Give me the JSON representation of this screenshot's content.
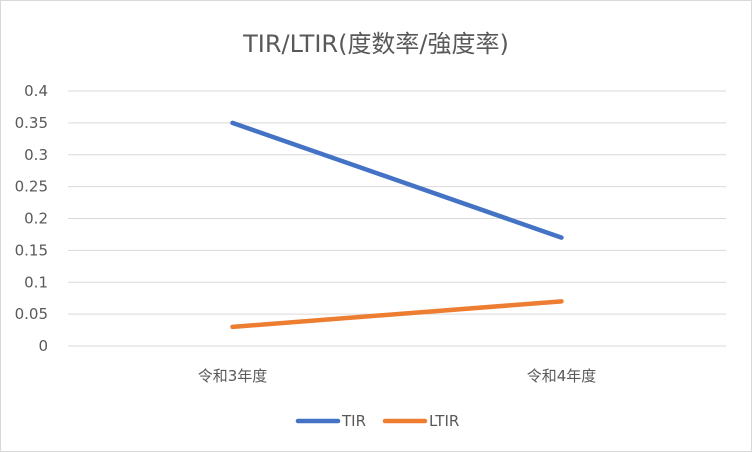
{
  "chart_data": {
    "type": "line",
    "title": "TIR/LTIR(度数率/強度率)",
    "categories": [
      "令和3年度",
      "令和4年度"
    ],
    "series": [
      {
        "name": "TIR",
        "values": [
          0.35,
          0.17
        ],
        "color": "#4472C4"
      },
      {
        "name": "LTIR",
        "values": [
          0.03,
          0.07
        ],
        "color": "#ED7D31"
      }
    ],
    "ylim": [
      0,
      0.4
    ],
    "yticks": [
      "0",
      "0.05",
      "0.1",
      "0.15",
      "0.2",
      "0.25",
      "0.3",
      "0.35",
      "0.4"
    ],
    "grid": true,
    "legend_position": "bottom",
    "xlabel": "",
    "ylabel": ""
  }
}
